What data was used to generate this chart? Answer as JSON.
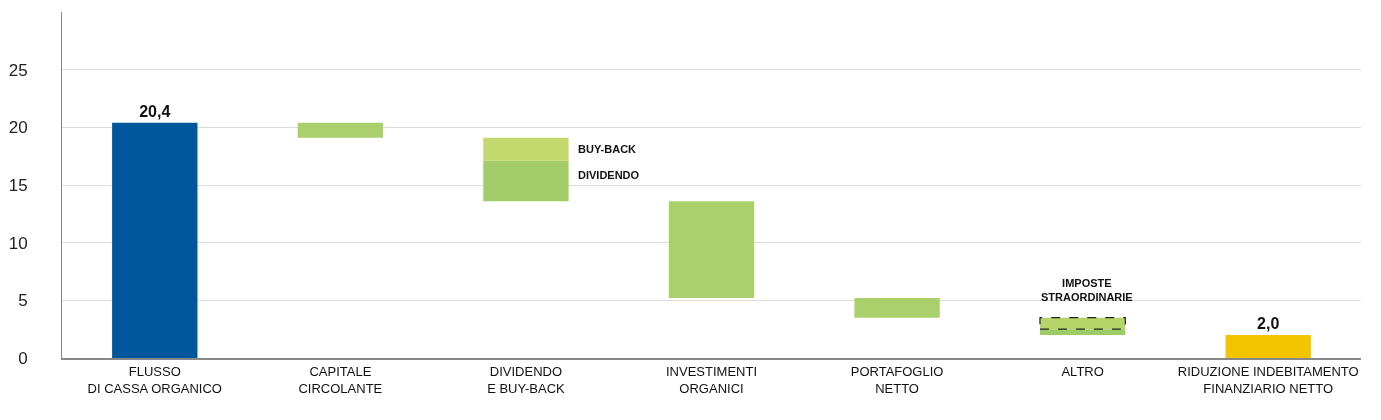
{
  "chart_data": {
    "type": "bar",
    "categories": [
      "FLUSSO\nDI CASSA ORGANICO",
      "CAPITALE\nCIRCOLANTE",
      "DIVIDENDO\nE BUY-BACK",
      "INVESTIMENTI\nORGANICI",
      "PORTAFOGLIO\nNETTO",
      "ALTRO",
      "RIDUZIONE INDEBITAMENTO\nFINANZIARIO NETTO"
    ],
    "series": [
      {
        "colors": [
          "#00579c",
          "#a9d06a",
          "#a3cd68",
          "#a9d06a",
          "#a9d06a",
          "#9ccc65",
          "#f5c400"
        ],
        "values": [
          20.4,
          1.3,
          3.5,
          8.4,
          1.7,
          0.5,
          2.0
        ],
        "base": [
          0,
          19.1,
          13.6,
          5.2,
          3.5,
          2.0,
          0
        ],
        "value_labels": [
          "20,4",
          null,
          null,
          null,
          null,
          null,
          "2,0"
        ]
      },
      {
        "color": "#c4d96d",
        "values": [
          null,
          null,
          2.0,
          null,
          null,
          null,
          null
        ],
        "base": [
          null,
          null,
          17.1,
          null,
          null,
          null,
          null
        ]
      },
      {
        "color": "#b5d46a",
        "line_style": "dashed",
        "values": [
          null,
          null,
          null,
          null,
          null,
          1.0,
          null
        ],
        "base": [
          null,
          null,
          null,
          null,
          null,
          2.5,
          null
        ]
      }
    ],
    "annotations": [
      "BUY-BACK",
      "DIVIDENDO",
      "IMPOSTE\nSTRAORDINARIE"
    ],
    "ylim": [
      0,
      30
    ],
    "yticks": [
      0,
      5,
      10,
      15,
      20,
      25
    ],
    "grid": "y"
  }
}
